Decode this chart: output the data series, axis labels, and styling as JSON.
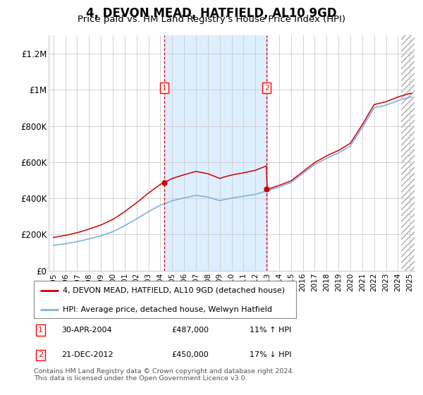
{
  "title": "4, DEVON MEAD, HATFIELD, AL10 9GD",
  "subtitle": "Price paid vs. HM Land Registry's House Price Index (HPI)",
  "title_fontsize": 12,
  "subtitle_fontsize": 9.5,
  "ylim": [
    0,
    1300000
  ],
  "yticks": [
    0,
    200000,
    400000,
    600000,
    800000,
    1000000,
    1200000
  ],
  "ytick_labels": [
    "£0",
    "£200K",
    "£400K",
    "£600K",
    "£800K",
    "£1M",
    "£1.2M"
  ],
  "hpi_color": "#7fb3d9",
  "price_color": "#cc0000",
  "shade_color": "#ddeeff",
  "legend_line1": "4, DEVON MEAD, HATFIELD, AL10 9GD (detached house)",
  "legend_line2": "HPI: Average price, detached house, Welwyn Hatfield",
  "footnote": "Contains HM Land Registry data © Crown copyright and database right 2024.\nThis data is licensed under the Open Government Licence v3.0.",
  "sale1_year": 2004.33,
  "sale1_price": 487000,
  "sale2_year": 2012.96,
  "sale2_price": 450000,
  "grid_color": "#cccccc"
}
